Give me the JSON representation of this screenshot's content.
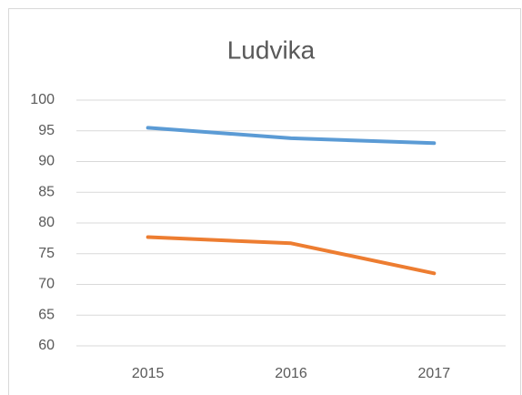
{
  "chart_data": {
    "type": "line",
    "title": "Ludvika",
    "categories": [
      "2015",
      "2016",
      "2017"
    ],
    "series": [
      {
        "color": "#5b9bd5",
        "values": [
          95.5,
          93.8,
          93.0
        ]
      },
      {
        "color": "#ed7d31",
        "values": [
          77.7,
          76.7,
          71.8
        ]
      }
    ],
    "ylim": [
      60,
      100
    ],
    "yticks": [
      60,
      65,
      70,
      75,
      80,
      85,
      90,
      95,
      100
    ],
    "grid": true
  }
}
